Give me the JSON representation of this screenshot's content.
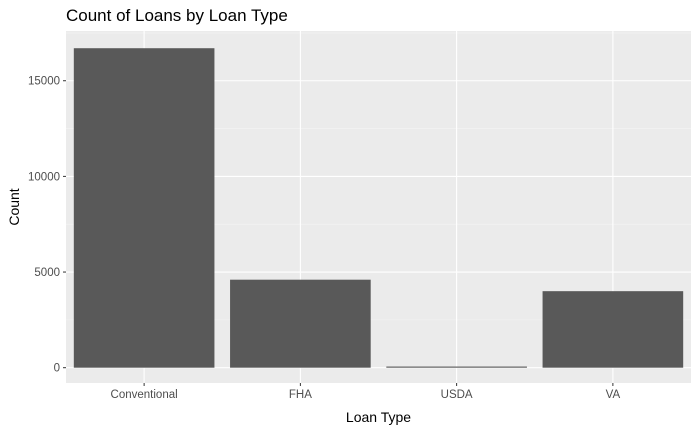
{
  "chart_data": {
    "type": "bar",
    "title": "Count of Loans by Loan Type",
    "xlabel": "Loan Type",
    "ylabel": "Count",
    "categories": [
      "Conventional",
      "FHA",
      "USDA",
      "VA"
    ],
    "values": [
      16700,
      4600,
      60,
      4000
    ],
    "ylim": [
      -800,
      17600
    ],
    "yticks": [
      0,
      5000,
      10000,
      15000
    ],
    "ytick_labels": [
      "0",
      "5000",
      "10000",
      "15000"
    ],
    "grid": true,
    "legend": "none",
    "colors": {
      "bar": "#595959",
      "panel": "#ebebeb",
      "grid_major": "#ffffff",
      "grid_minor": "#f5f5f5",
      "tick_text": "#4d4d4d",
      "tick_mark": "#333333"
    }
  }
}
